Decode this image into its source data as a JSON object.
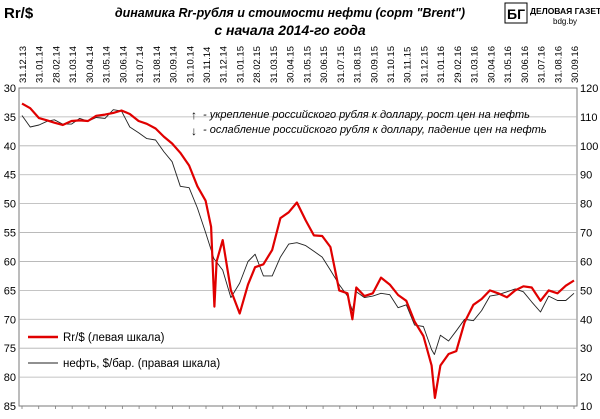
{
  "header": {
    "unit_label": "Rr/$",
    "title_line1": "динамика  Rr-рубля  и стоимости нефти (сорт \"Brent\")",
    "title_line2": "с начала 2014-го года",
    "logo_letters": "БГ",
    "logo_name": "ДЕЛОВАЯ ГАЗЕТА",
    "logo_site": "bdg.by"
  },
  "notes": {
    "up_arrow": "↑",
    "up_text": "- укрепление российского рубля к доллару, рост цен на нефть",
    "down_arrow": "↓",
    "down_text": "- ослабление российского рубля к доллару, падение цен на нефть"
  },
  "legend": {
    "rub_label": "Rr/$  (левая шкала)",
    "oil_label": "нефть, $/бар.  (правая шкала)"
  },
  "colors": {
    "rub": "#e00000",
    "oil": "#222222",
    "grid": "#b0b0b0"
  },
  "chart_data": {
    "type": "line",
    "title": "динамика  Rr-рубля  и стоимости нефти (сорт \"Brent\") с начала 2014-го года",
    "x_ticks": [
      "31.12.13",
      "31.01.14",
      "28.02.14",
      "31.03.14",
      "30.04.14",
      "31.05.14",
      "30.06.14",
      "31.07.14",
      "31.08.14",
      "30.09.14",
      "31.10.14",
      "30.11.14",
      "31.12.14",
      "31.01.15",
      "28.02.15",
      "31.03.15",
      "30.04.15",
      "31.05.15",
      "30.06.15",
      "31.07.15",
      "31.08.15",
      "30.09.15",
      "31.10.15",
      "30.11.15",
      "31.12.15",
      "31.01.16",
      "29.02.16",
      "31.03.16",
      "30.04.16",
      "31.05.16",
      "30.06.16",
      "31.07.16",
      "31.08.16",
      "30.09.16"
    ],
    "y_left": {
      "label": "Rr/$",
      "range": [
        30,
        85
      ],
      "inverted": true,
      "ticks": [
        30,
        35,
        40,
        45,
        50,
        55,
        60,
        65,
        70,
        75,
        80,
        85
      ]
    },
    "y_right": {
      "label": "нефть, $/бар.",
      "range": [
        10,
        120
      ],
      "ticks": [
        10,
        20,
        30,
        40,
        50,
        60,
        70,
        80,
        90,
        100,
        110,
        120
      ]
    },
    "grid": true,
    "legend_position": "bottom-left",
    "series": [
      {
        "name": "Rr/$  (левая шкала)",
        "axis": "left",
        "dates": [
          "2013-12-31",
          "2014-01-15",
          "2014-01-31",
          "2014-02-15",
          "2014-02-28",
          "2014-03-15",
          "2014-03-31",
          "2014-04-15",
          "2014-04-30",
          "2014-05-15",
          "2014-05-31",
          "2014-06-15",
          "2014-06-30",
          "2014-07-15",
          "2014-07-31",
          "2014-08-15",
          "2014-08-31",
          "2014-09-15",
          "2014-09-30",
          "2014-10-15",
          "2014-10-31",
          "2014-11-15",
          "2014-11-30",
          "2014-12-10",
          "2014-12-16",
          "2014-12-20",
          "2014-12-31",
          "2015-01-15",
          "2015-01-31",
          "2015-02-15",
          "2015-02-28",
          "2015-03-15",
          "2015-03-31",
          "2015-04-15",
          "2015-04-30",
          "2015-05-15",
          "2015-05-31",
          "2015-06-15",
          "2015-06-30",
          "2015-07-15",
          "2015-07-31",
          "2015-08-15",
          "2015-08-24",
          "2015-08-31",
          "2015-09-15",
          "2015-09-30",
          "2015-10-15",
          "2015-10-31",
          "2015-11-15",
          "2015-11-30",
          "2015-12-15",
          "2015-12-31",
          "2016-01-15",
          "2016-01-21",
          "2016-01-31",
          "2016-02-15",
          "2016-02-29",
          "2016-03-15",
          "2016-03-31",
          "2016-04-15",
          "2016-04-30",
          "2016-05-15",
          "2016-05-31",
          "2016-06-15",
          "2016-06-30",
          "2016-07-15",
          "2016-07-31",
          "2016-08-15",
          "2016-08-31",
          "2016-09-15",
          "2016-09-30"
        ],
        "values": [
          32.7,
          33.5,
          35.2,
          35.6,
          36.0,
          36.4,
          35.7,
          35.6,
          35.7,
          34.8,
          34.6,
          34.3,
          33.9,
          34.5,
          35.7,
          36.2,
          37.0,
          38.4,
          39.6,
          41.2,
          43.4,
          47.0,
          49.5,
          54.0,
          67.8,
          60.0,
          56.3,
          65.0,
          69.0,
          64.0,
          61.0,
          60.5,
          58.0,
          52.5,
          51.5,
          49.8,
          52.9,
          55.5,
          55.6,
          57.5,
          65.0,
          65.5,
          70.0,
          64.5,
          66.0,
          65.5,
          62.8,
          64.0,
          65.8,
          66.8,
          70.4,
          72.9,
          78.0,
          83.6,
          78.0,
          76.0,
          75.5,
          70.5,
          67.5,
          66.5,
          65.0,
          65.5,
          66.2,
          65.0,
          64.3,
          64.5,
          66.8,
          65.0,
          65.5,
          64.2,
          63.3
        ]
      },
      {
        "name": "нефть, $/бар.  (правая шкала)",
        "axis": "right",
        "dates": [
          "2013-12-31",
          "2014-01-15",
          "2014-01-31",
          "2014-02-15",
          "2014-02-28",
          "2014-03-15",
          "2014-03-31",
          "2014-04-15",
          "2014-04-30",
          "2014-05-15",
          "2014-05-31",
          "2014-06-15",
          "2014-06-30",
          "2014-07-15",
          "2014-07-31",
          "2014-08-15",
          "2014-08-31",
          "2014-09-15",
          "2014-09-30",
          "2014-10-15",
          "2014-10-31",
          "2014-11-15",
          "2014-11-30",
          "2014-12-15",
          "2014-12-31",
          "2015-01-15",
          "2015-01-31",
          "2015-02-15",
          "2015-02-28",
          "2015-03-15",
          "2015-03-31",
          "2015-04-15",
          "2015-04-30",
          "2015-05-15",
          "2015-05-31",
          "2015-06-15",
          "2015-06-30",
          "2015-07-15",
          "2015-07-31",
          "2015-08-15",
          "2015-08-24",
          "2015-08-31",
          "2015-09-15",
          "2015-09-30",
          "2015-10-15",
          "2015-10-31",
          "2015-11-15",
          "2015-11-30",
          "2015-12-15",
          "2015-12-31",
          "2016-01-15",
          "2016-01-20",
          "2016-01-31",
          "2016-02-15",
          "2016-02-29",
          "2016-03-15",
          "2016-03-31",
          "2016-04-15",
          "2016-04-30",
          "2016-05-15",
          "2016-05-31",
          "2016-06-15",
          "2016-06-30",
          "2016-07-15",
          "2016-07-31",
          "2016-08-15",
          "2016-08-31",
          "2016-09-15",
          "2016-09-30"
        ],
        "values": [
          110.5,
          106.5,
          107.2,
          108.5,
          109.0,
          107.5,
          107.5,
          109.5,
          108.5,
          109.8,
          109.5,
          112.5,
          112.0,
          106.5,
          104.5,
          102.5,
          102.0,
          98.0,
          94.5,
          86.0,
          85.5,
          78.5,
          70.0,
          61.0,
          57.0,
          47.5,
          52.5,
          60.0,
          62.5,
          55.0,
          55.0,
          61.5,
          66.0,
          66.5,
          65.5,
          63.5,
          61.5,
          57.0,
          52.0,
          48.0,
          43.0,
          49.5,
          47.5,
          48.0,
          49.0,
          48.5,
          44.0,
          45.0,
          38.0,
          37.5,
          29.5,
          27.8,
          34.5,
          32.5,
          36.0,
          40.0,
          39.5,
          43.0,
          48.0,
          48.5,
          49.5,
          50.5,
          49.5,
          46.0,
          42.5,
          48.0,
          46.5,
          46.5,
          49.0
        ]
      }
    ]
  }
}
